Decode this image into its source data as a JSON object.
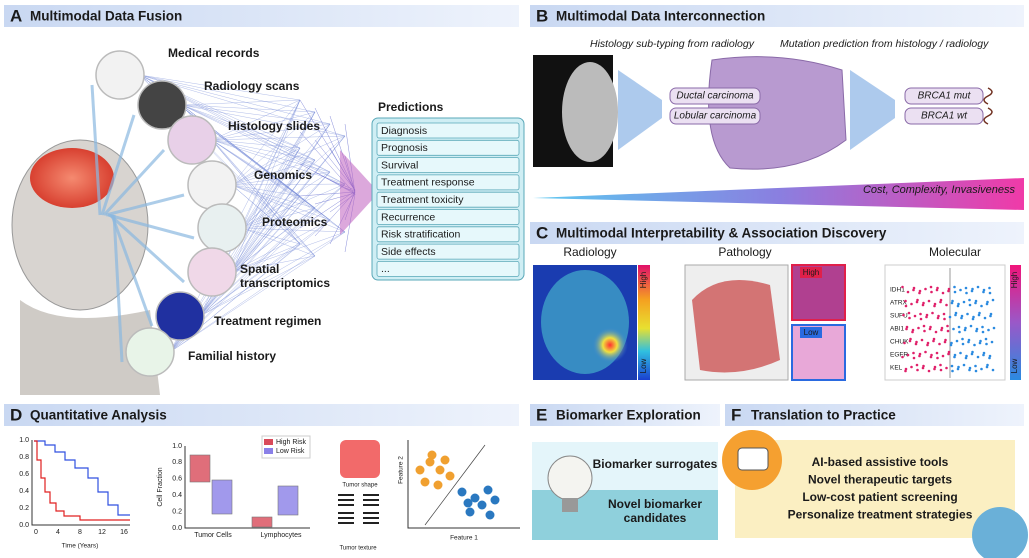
{
  "panel_a": {
    "letter": "A",
    "title": "Multimodal Data Fusion",
    "inputs": [
      {
        "lines": [
          "Medical records"
        ]
      },
      {
        "lines": [
          "Radiology scans"
        ]
      },
      {
        "lines": [
          "Histology slides"
        ]
      },
      {
        "lines": [
          "Genomics"
        ]
      },
      {
        "lines": [
          "Proteomics"
        ]
      },
      {
        "lines": [
          "Spatial",
          "transcriptomics"
        ]
      },
      {
        "lines": [
          "Treatment regimen"
        ]
      },
      {
        "lines": [
          "Familial history"
        ]
      }
    ],
    "predictions_title": "Predictions",
    "predictions": [
      "Diagnosis",
      "Prognosis",
      "Survival",
      "Treatment response",
      "Treatment toxicity",
      "Recurrence",
      "Risk stratification",
      "Side effects",
      "..."
    ]
  },
  "panel_b": {
    "letter": "B",
    "title": "Multimodal Data Interconnection",
    "caption_left": "Histology sub-typing from radiology",
    "caption_right": "Mutation prediction from histology / radiology",
    "subtypes": [
      "Ductal carcinoma",
      "Lobular carcinoma"
    ],
    "mutations": [
      "BRCA1 mut",
      "BRCA1 wt"
    ],
    "gradient_label": "Cost, Complexity, Invasiveness"
  },
  "panel_c": {
    "letter": "C",
    "title": "Multimodal Interpretability & Association Discovery",
    "radiology": {
      "title": "Radiology",
      "high": "High",
      "low": "Low"
    },
    "pathology": {
      "title": "Pathology",
      "high": "High",
      "low": "Low"
    },
    "molecular": {
      "title": "Molecular",
      "genes": [
        "IDH1",
        "ATRX",
        "SUFU",
        "ABI1",
        "CHUK",
        "EGFR",
        "KEL"
      ],
      "high": "High",
      "low": "Low"
    }
  },
  "panel_d": {
    "letter": "D",
    "title": "Quantitative Analysis",
    "km": {
      "x_label": "Time (Years)",
      "xtick_labels": [
        "0",
        "4",
        "8",
        "12",
        "16"
      ],
      "ytick_labels": [
        "1.0",
        "0.8",
        "0.6",
        "0.4",
        "0.2",
        "0.0"
      ]
    },
    "box": {
      "y_label": "Cell Fraction",
      "ytick_labels": [
        "1.0",
        "0.8",
        "0.6",
        "0.4",
        "0.2",
        "0.0"
      ],
      "categories": [
        "Tumor Cells",
        "Lymphocytes"
      ],
      "legend": [
        "High Risk",
        "Low Risk"
      ]
    },
    "tumor": {
      "shape": "Tumor shape",
      "texture": "Tumor texture"
    },
    "scatter": {
      "x_label": "Feature 1",
      "y_label": "Feature 2"
    }
  },
  "panel_e": {
    "letter": "E",
    "title": "Biomarker Exploration",
    "items": [
      {
        "lines": [
          "Biomarker surrogates"
        ]
      },
      {
        "lines": [
          "Novel biomarker",
          "candidates"
        ]
      }
    ]
  },
  "panel_f": {
    "letter": "F",
    "title": "Translation to Practice",
    "items": [
      "AI-based assistive tools",
      "Novel therapeutic targets",
      "Low-cost patient screening",
      "Personalize treatment strategies"
    ]
  }
}
